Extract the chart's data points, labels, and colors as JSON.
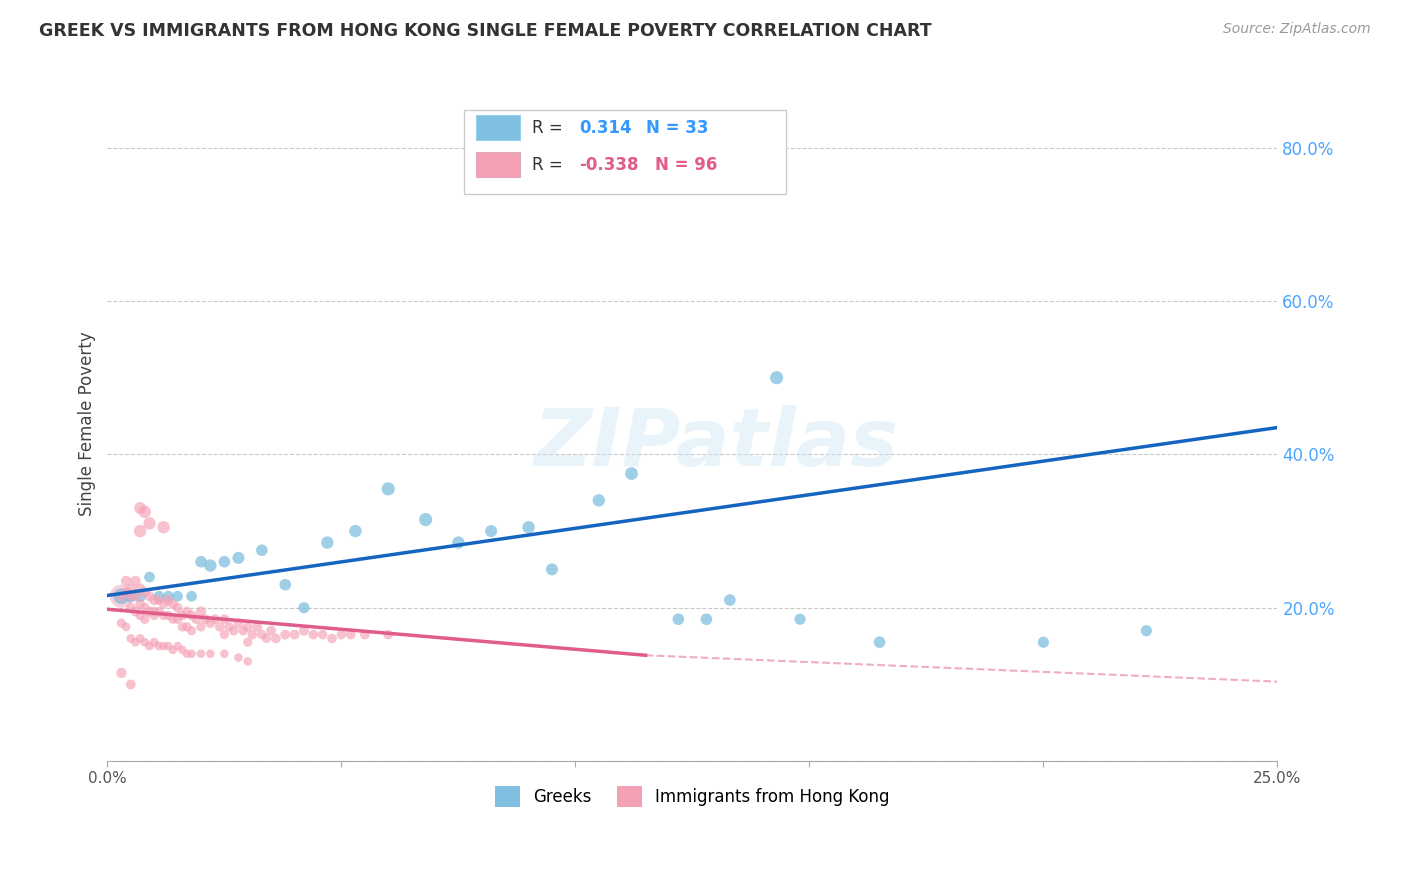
{
  "title": "GREEK VS IMMIGRANTS FROM HONG KONG SINGLE FEMALE POVERTY CORRELATION CHART",
  "source": "Source: ZipAtlas.com",
  "ylabel": "Single Female Poverty",
  "xlim": [
    0.0,
    0.25
  ],
  "ylim": [
    0.0,
    0.88
  ],
  "yticks": [
    0.0,
    0.2,
    0.4,
    0.6,
    0.8
  ],
  "ytick_labels": [
    "",
    "20.0%",
    "40.0%",
    "60.0%",
    "80.0%"
  ],
  "xtick_positions": [
    0.0,
    0.05,
    0.1,
    0.15,
    0.2,
    0.25
  ],
  "xtick_labels": [
    "0.0%",
    "",
    "",
    "",
    "",
    "25.0%"
  ],
  "greek_R": 0.314,
  "greek_N": 33,
  "hk_R": -0.338,
  "hk_N": 96,
  "blue_color": "#7fbfdf",
  "blue_line_color": "#1565c0",
  "pink_color": "#f4a0b5",
  "pink_line_color": "#e05c8a",
  "watermark": "ZIPatlas",
  "blue_line": [
    0.0,
    0.216,
    0.25,
    0.435
  ],
  "pink_line_solid": [
    0.0,
    0.198,
    0.115,
    0.138
  ],
  "pink_line_dashed": [
    0.115,
    0.138,
    0.48,
    0.045
  ],
  "greek_points": [
    [
      0.003,
      0.215,
      130
    ],
    [
      0.005,
      0.215,
      80
    ],
    [
      0.007,
      0.215,
      70
    ],
    [
      0.009,
      0.24,
      60
    ],
    [
      0.011,
      0.215,
      60
    ],
    [
      0.013,
      0.215,
      60
    ],
    [
      0.015,
      0.215,
      60
    ],
    [
      0.018,
      0.215,
      60
    ],
    [
      0.02,
      0.26,
      70
    ],
    [
      0.022,
      0.255,
      80
    ],
    [
      0.025,
      0.26,
      70
    ],
    [
      0.028,
      0.265,
      75
    ],
    [
      0.033,
      0.275,
      70
    ],
    [
      0.038,
      0.23,
      70
    ],
    [
      0.042,
      0.2,
      65
    ],
    [
      0.047,
      0.285,
      80
    ],
    [
      0.053,
      0.3,
      80
    ],
    [
      0.06,
      0.355,
      90
    ],
    [
      0.068,
      0.315,
      90
    ],
    [
      0.075,
      0.285,
      80
    ],
    [
      0.082,
      0.3,
      75
    ],
    [
      0.09,
      0.305,
      80
    ],
    [
      0.095,
      0.25,
      75
    ],
    [
      0.105,
      0.34,
      80
    ],
    [
      0.112,
      0.375,
      85
    ],
    [
      0.122,
      0.185,
      70
    ],
    [
      0.128,
      0.185,
      70
    ],
    [
      0.133,
      0.21,
      70
    ],
    [
      0.143,
      0.5,
      90
    ],
    [
      0.148,
      0.185,
      65
    ],
    [
      0.165,
      0.155,
      70
    ],
    [
      0.2,
      0.155,
      65
    ],
    [
      0.222,
      0.17,
      65
    ]
  ],
  "hk_points_big": [
    [
      0.003,
      0.215,
      280
    ]
  ],
  "hk_points": [
    [
      0.003,
      0.215,
      60
    ],
    [
      0.004,
      0.235,
      55
    ],
    [
      0.004,
      0.22,
      50
    ],
    [
      0.005,
      0.225,
      55
    ],
    [
      0.005,
      0.2,
      50
    ],
    [
      0.005,
      0.215,
      45
    ],
    [
      0.006,
      0.235,
      55
    ],
    [
      0.006,
      0.215,
      50
    ],
    [
      0.006,
      0.195,
      50
    ],
    [
      0.007,
      0.225,
      55
    ],
    [
      0.007,
      0.205,
      50
    ],
    [
      0.007,
      0.19,
      45
    ],
    [
      0.008,
      0.22,
      55
    ],
    [
      0.008,
      0.2,
      50
    ],
    [
      0.008,
      0.185,
      45
    ],
    [
      0.009,
      0.215,
      50
    ],
    [
      0.009,
      0.195,
      50
    ],
    [
      0.01,
      0.21,
      55
    ],
    [
      0.01,
      0.195,
      50
    ],
    [
      0.01,
      0.19,
      45
    ],
    [
      0.011,
      0.21,
      50
    ],
    [
      0.011,
      0.195,
      45
    ],
    [
      0.012,
      0.205,
      50
    ],
    [
      0.012,
      0.19,
      45
    ],
    [
      0.013,
      0.21,
      55
    ],
    [
      0.013,
      0.19,
      45
    ],
    [
      0.014,
      0.205,
      50
    ],
    [
      0.014,
      0.185,
      45
    ],
    [
      0.015,
      0.2,
      50
    ],
    [
      0.015,
      0.185,
      45
    ],
    [
      0.016,
      0.19,
      50
    ],
    [
      0.016,
      0.175,
      45
    ],
    [
      0.017,
      0.195,
      50
    ],
    [
      0.017,
      0.175,
      45
    ],
    [
      0.018,
      0.19,
      50
    ],
    [
      0.018,
      0.17,
      45
    ],
    [
      0.019,
      0.185,
      50
    ],
    [
      0.02,
      0.195,
      55
    ],
    [
      0.02,
      0.175,
      45
    ],
    [
      0.021,
      0.185,
      50
    ],
    [
      0.022,
      0.18,
      50
    ],
    [
      0.023,
      0.185,
      50
    ],
    [
      0.024,
      0.175,
      48
    ],
    [
      0.025,
      0.185,
      50
    ],
    [
      0.025,
      0.165,
      45
    ],
    [
      0.026,
      0.175,
      48
    ],
    [
      0.027,
      0.17,
      48
    ],
    [
      0.028,
      0.18,
      50
    ],
    [
      0.029,
      0.17,
      48
    ],
    [
      0.03,
      0.175,
      50
    ],
    [
      0.03,
      0.155,
      45
    ],
    [
      0.031,
      0.165,
      48
    ],
    [
      0.032,
      0.175,
      50
    ],
    [
      0.033,
      0.165,
      48
    ],
    [
      0.034,
      0.16,
      45
    ],
    [
      0.035,
      0.17,
      50
    ],
    [
      0.036,
      0.16,
      48
    ],
    [
      0.038,
      0.165,
      50
    ],
    [
      0.04,
      0.165,
      50
    ],
    [
      0.042,
      0.17,
      50
    ],
    [
      0.044,
      0.165,
      48
    ],
    [
      0.046,
      0.165,
      48
    ],
    [
      0.048,
      0.16,
      48
    ],
    [
      0.05,
      0.165,
      48
    ],
    [
      0.052,
      0.165,
      48
    ],
    [
      0.055,
      0.165,
      48
    ],
    [
      0.06,
      0.165,
      48
    ],
    [
      0.007,
      0.3,
      80
    ],
    [
      0.009,
      0.31,
      80
    ],
    [
      0.008,
      0.325,
      80
    ],
    [
      0.012,
      0.305,
      80
    ],
    [
      0.007,
      0.33,
      75
    ],
    [
      0.003,
      0.18,
      45
    ],
    [
      0.004,
      0.175,
      40
    ],
    [
      0.005,
      0.16,
      40
    ],
    [
      0.006,
      0.155,
      40
    ],
    [
      0.007,
      0.16,
      40
    ],
    [
      0.008,
      0.155,
      40
    ],
    [
      0.009,
      0.15,
      40
    ],
    [
      0.01,
      0.155,
      40
    ],
    [
      0.011,
      0.15,
      40
    ],
    [
      0.012,
      0.15,
      38
    ],
    [
      0.013,
      0.15,
      38
    ],
    [
      0.014,
      0.145,
      38
    ],
    [
      0.015,
      0.15,
      38
    ],
    [
      0.016,
      0.145,
      38
    ],
    [
      0.017,
      0.14,
      38
    ],
    [
      0.018,
      0.14,
      38
    ],
    [
      0.02,
      0.14,
      38
    ],
    [
      0.022,
      0.14,
      38
    ],
    [
      0.025,
      0.14,
      38
    ],
    [
      0.028,
      0.135,
      38
    ],
    [
      0.03,
      0.13,
      38
    ],
    [
      0.003,
      0.115,
      55
    ],
    [
      0.005,
      0.1,
      50
    ]
  ]
}
